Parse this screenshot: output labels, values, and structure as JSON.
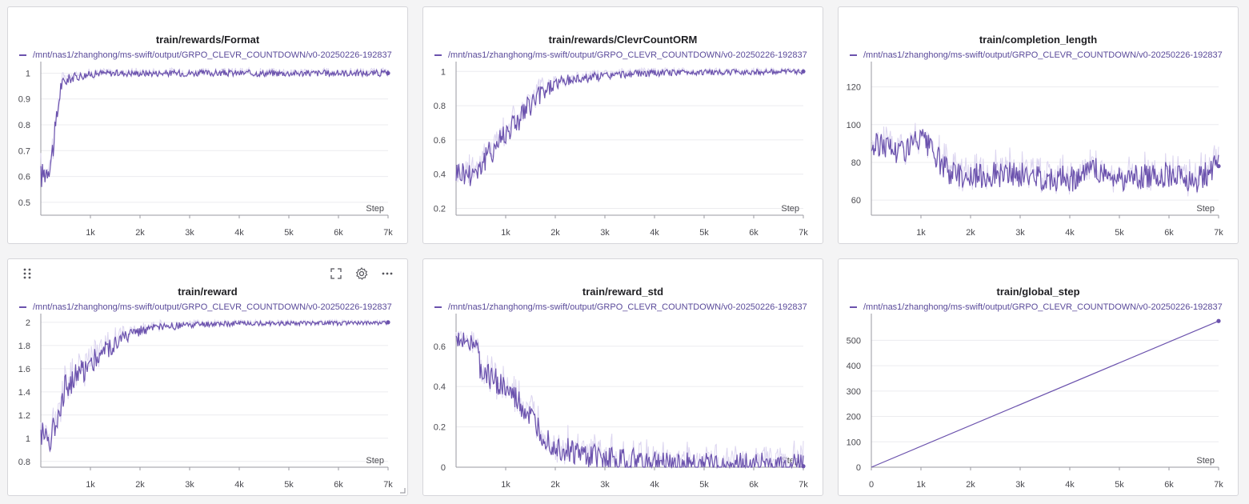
{
  "theme": {
    "line": "#6b52ad",
    "band": "#d8d0ee",
    "grid": "#ececef",
    "axis": "#9a9aa2"
  },
  "toolbar": {
    "drag": "drag-handle-icon",
    "fullscreen": "fullscreen-icon",
    "settings": "gear-icon",
    "more": "more-icon"
  },
  "legend_run": "/mnt/nas1/zhanghong/ms-swift/output/GRPO_CLEVR_COUNTDOWN/v0-20250226-192837",
  "chart_data": [
    {
      "type": "line",
      "title": "train/rewards/Format",
      "xlabel": "Step",
      "xlim": [
        0,
        7000
      ],
      "ylim": [
        0.45,
        1.02
      ],
      "yticks": [
        0.5,
        0.6,
        0.7,
        0.8,
        0.9,
        1
      ],
      "ytick_labels": [
        "0.5",
        "0.6",
        "0.7",
        "0.8",
        "0.9",
        "1"
      ],
      "xticks": [
        1000,
        2000,
        3000,
        4000,
        5000,
        6000,
        7000
      ],
      "xtick_labels": [
        "1k",
        "2k",
        "3k",
        "4k",
        "5k",
        "6k",
        "7k"
      ],
      "series": [
        {
          "name": "/mnt/nas1/zhanghong/ms-swift/output/GRPO_CLEVR_COUNTDOWN/v0-20250226-192837",
          "x": [
            0,
            100,
            200,
            300,
            350,
            400,
            500,
            600,
            700,
            800,
            1000,
            1200,
            1500,
            2000,
            3000,
            4000,
            5000,
            6000,
            7000
          ],
          "y": [
            0.6,
            0.62,
            0.66,
            0.78,
            0.87,
            0.95,
            0.97,
            0.98,
            0.985,
            0.99,
            0.995,
            1,
            1,
            1,
            1,
            1,
            1,
            1,
            1
          ]
        }
      ]
    },
    {
      "type": "line",
      "title": "train/rewards/ClevrCountORM",
      "xlabel": "Step",
      "xlim": [
        0,
        7000
      ],
      "ylim": [
        0.16,
        1.02
      ],
      "yticks": [
        0.2,
        0.4,
        0.6,
        0.8,
        1
      ],
      "ytick_labels": [
        "0.2",
        "0.4",
        "0.6",
        "0.8",
        "1"
      ],
      "xticks": [
        1000,
        2000,
        3000,
        4000,
        5000,
        6000,
        7000
      ],
      "xtick_labels": [
        "1k",
        "2k",
        "3k",
        "4k",
        "5k",
        "6k",
        "7k"
      ],
      "series": [
        {
          "name": "/mnt/nas1/zhanghong/ms-swift/output/GRPO_CLEVR_COUNTDOWN/v0-20250226-192837",
          "x": [
            0,
            250,
            500,
            750,
            1000,
            1250,
            1500,
            1750,
            2000,
            2500,
            3000,
            3500,
            4000,
            4500,
            5000,
            5500,
            6000,
            6500,
            7000
          ],
          "y": [
            0.42,
            0.4,
            0.45,
            0.55,
            0.65,
            0.72,
            0.8,
            0.88,
            0.93,
            0.96,
            0.975,
            0.985,
            0.99,
            0.995,
            0.995,
            0.995,
            0.997,
            0.998,
            1
          ]
        }
      ]
    },
    {
      "type": "line",
      "title": "train/completion_length",
      "xlabel": "Step",
      "xlim": [
        0,
        7000
      ],
      "ylim": [
        52,
        130
      ],
      "yticks": [
        60,
        80,
        100,
        120
      ],
      "ytick_labels": [
        "60",
        "80",
        "100",
        "120"
      ],
      "xticks": [
        1000,
        2000,
        3000,
        4000,
        5000,
        6000,
        7000
      ],
      "xtick_labels": [
        "1k",
        "2k",
        "3k",
        "4k",
        "5k",
        "6k",
        "7k"
      ],
      "series": [
        {
          "name": "/mnt/nas1/zhanghong/ms-swift/output/GRPO_CLEVR_COUNTDOWN/v0-20250226-192837",
          "x": [
            0,
            250,
            500,
            750,
            1000,
            1250,
            1500,
            1750,
            2000,
            2500,
            3000,
            3500,
            4000,
            4500,
            5000,
            5500,
            6000,
            6500,
            7000
          ],
          "y": [
            88,
            90,
            86,
            88,
            92,
            85,
            76,
            74,
            72,
            74,
            73,
            72,
            71,
            76,
            71,
            72,
            74,
            70,
            78
          ]
        }
      ]
    },
    {
      "type": "line",
      "title": "train/reward",
      "xlabel": "Step",
      "xlim": [
        0,
        7000
      ],
      "ylim": [
        0.75,
        2.02
      ],
      "yticks": [
        0.8,
        1,
        1.2,
        1.4,
        1.6,
        1.8,
        2
      ],
      "ytick_labels": [
        "0.8",
        "1",
        "1.2",
        "1.4",
        "1.6",
        "1.8",
        "2"
      ],
      "xticks": [
        1000,
        2000,
        3000,
        4000,
        5000,
        6000,
        7000
      ],
      "xtick_labels": [
        "1k",
        "2k",
        "3k",
        "4k",
        "5k",
        "6k",
        "7k"
      ],
      "series": [
        {
          "name": "/mnt/nas1/zhanghong/ms-swift/output/GRPO_CLEVR_COUNTDOWN/v0-20250226-192837",
          "x": [
            0,
            200,
            300,
            400,
            500,
            750,
            1000,
            1250,
            1500,
            1750,
            2000,
            2500,
            3000,
            3500,
            4000,
            5000,
            6000,
            7000
          ],
          "y": [
            1.05,
            1.0,
            1.15,
            1.3,
            1.45,
            1.55,
            1.65,
            1.75,
            1.82,
            1.88,
            1.93,
            1.96,
            1.975,
            1.985,
            1.99,
            1.995,
            1.995,
            2
          ]
        }
      ]
    },
    {
      "type": "line",
      "title": "train/reward_std",
      "xlabel": "Step",
      "xlim": [
        0,
        7000
      ],
      "ylim": [
        0,
        0.73
      ],
      "yticks": [
        0,
        0.2,
        0.4,
        0.6
      ],
      "ytick_labels": [
        "0",
        "0.2",
        "0.4",
        "0.6"
      ],
      "xticks": [
        1000,
        2000,
        3000,
        4000,
        5000,
        6000,
        7000
      ],
      "xtick_labels": [
        "1k",
        "2k",
        "3k",
        "4k",
        "5k",
        "6k",
        "7k"
      ],
      "series": [
        {
          "name": "/mnt/nas1/zhanghong/ms-swift/output/GRPO_CLEVR_COUNTDOWN/v0-20250226-192837",
          "x": [
            0,
            200,
            400,
            500,
            750,
            1000,
            1250,
            1500,
            1750,
            2000,
            2500,
            3000,
            3500,
            4000,
            4500,
            5000,
            6000,
            7000
          ],
          "y": [
            0.62,
            0.64,
            0.6,
            0.47,
            0.44,
            0.38,
            0.32,
            0.24,
            0.16,
            0.1,
            0.06,
            0.04,
            0.03,
            0.02,
            0.012,
            0.01,
            0.008,
            0.005
          ]
        }
      ]
    },
    {
      "type": "line",
      "title": "train/global_step",
      "xlabel": "Step",
      "xlim": [
        0,
        7000
      ],
      "ylim": [
        0,
        580
      ],
      "yticks": [
        0,
        100,
        200,
        300,
        400,
        500
      ],
      "ytick_labels": [
        "0",
        "100",
        "200",
        "300",
        "400",
        "500"
      ],
      "xticks": [
        0,
        1000,
        2000,
        3000,
        4000,
        5000,
        6000,
        7000
      ],
      "xtick_labels": [
        "0",
        "1k",
        "2k",
        "3k",
        "4k",
        "5k",
        "6k",
        "7k"
      ],
      "series": [
        {
          "name": "/mnt/nas1/zhanghong/ms-swift/output/GRPO_CLEVR_COUNTDOWN/v0-20250226-192837",
          "x": [
            0,
            7000
          ],
          "y": [
            0,
            576
          ]
        }
      ]
    }
  ]
}
